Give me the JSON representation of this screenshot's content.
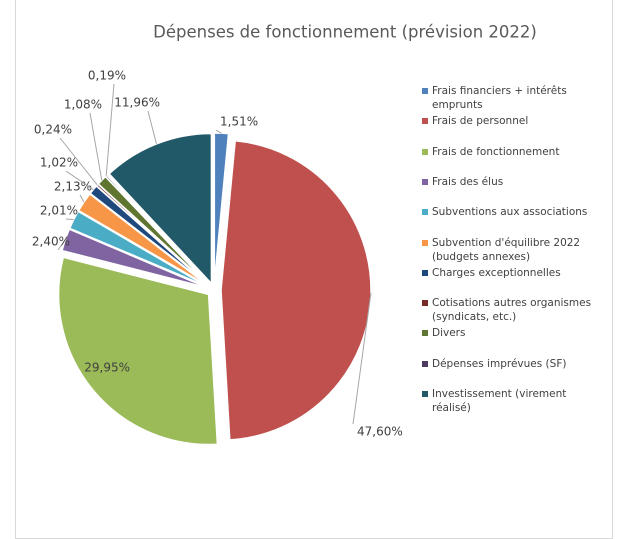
{
  "chart_data": {
    "type": "pie",
    "title": "Dépenses de fonctionnement (prévision 2022)",
    "categories": [
      "Frais financiers + intérêts emprunts",
      "Frais de personnel",
      "Frais de fonctionnement",
      "Frais des élus",
      "Subventions aux associations",
      "Subvention d'équilibre 2022 (budgets annexes)",
      "Charges exceptionnelles",
      "Cotisations autres organismes (syndicats, etc.)",
      "Divers",
      "Dépenses imprévues (SF)",
      "Investissement (virement réalisé)"
    ],
    "values": [
      1.51,
      47.6,
      29.95,
      2.4,
      2.01,
      2.13,
      1.02,
      0.24,
      1.08,
      0.19,
      11.96
    ],
    "value_labels": [
      "1,51%",
      "47,60%",
      "29,95%",
      "2,40%",
      "2,01%",
      "2,13%",
      "1,02%",
      "0,24%",
      "1,08%",
      "0,19%",
      "11,96%"
    ],
    "colors": [
      "#4f81bd",
      "#c0504d",
      "#9bbb59",
      "#8064a2",
      "#4bacc6",
      "#f79646",
      "#1f497d",
      "#772c2a",
      "#5f7530",
      "#4d3b62",
      "#215968"
    ],
    "legend": "right"
  }
}
